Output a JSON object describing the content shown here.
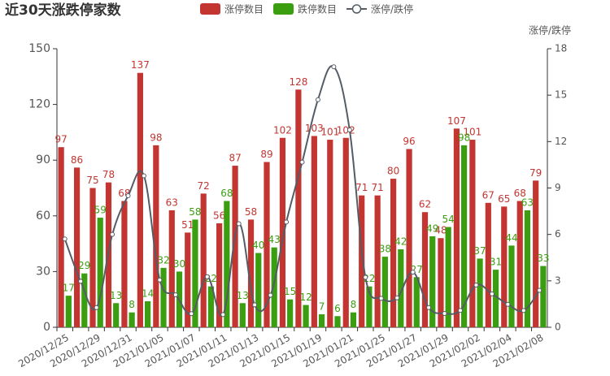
{
  "chart_data": {
    "type": "bar",
    "title": "近30天涨跌停家数",
    "y2label": "涨停/跌停",
    "categories": [
      "2020/12/25",
      null,
      "2020/12/29",
      null,
      "2020/12/31",
      null,
      "2021/01/05",
      null,
      "2021/01/07",
      null,
      "2021/01/11",
      null,
      "2021/01/13",
      null,
      "2021/01/15",
      null,
      "2021/01/19",
      null,
      "2021/01/21",
      null,
      "2021/01/25",
      null,
      "2021/01/27",
      null,
      "2021/01/29",
      null,
      "2021/02/02",
      null,
      "2021/02/04",
      null,
      "2021/02/08"
    ],
    "series": [
      {
        "name": "涨停数目",
        "type": "bar",
        "color": "#c23531",
        "values": [
          97,
          86,
          75,
          78,
          68,
          137,
          98,
          63,
          51,
          72,
          56,
          87,
          58,
          89,
          102,
          128,
          103,
          101,
          102,
          71,
          71,
          80,
          96,
          62,
          48,
          107,
          101,
          67,
          65,
          68,
          79
        ]
      },
      {
        "name": "跌停数目",
        "type": "bar",
        "color": "#3a9e10",
        "values": [
          17,
          29,
          59,
          13,
          8,
          14,
          32,
          30,
          58,
          22,
          68,
          13,
          40,
          43,
          15,
          12,
          7,
          6,
          8,
          22,
          38,
          42,
          27,
          49,
          54,
          98,
          37,
          31,
          44,
          63,
          33
        ]
      },
      {
        "name": "涨停/跌停",
        "type": "line",
        "axis": "y2",
        "color": "#555c66",
        "values": [
          5.71,
          2.97,
          1.27,
          6.0,
          8.5,
          9.79,
          3.06,
          2.1,
          0.88,
          3.27,
          0.82,
          6.69,
          1.45,
          2.07,
          6.8,
          10.67,
          14.71,
          16.83,
          12.75,
          3.23,
          1.87,
          1.9,
          3.56,
          1.27,
          0.89,
          1.09,
          2.73,
          2.16,
          1.48,
          1.08,
          2.39
        ]
      }
    ],
    "ylim": [
      0,
      150
    ],
    "yticks": [
      0,
      30,
      60,
      90,
      120,
      150
    ],
    "y2lim": [
      0,
      18
    ],
    "y2ticks": [
      0,
      3,
      6,
      9,
      12,
      15,
      18
    ]
  }
}
